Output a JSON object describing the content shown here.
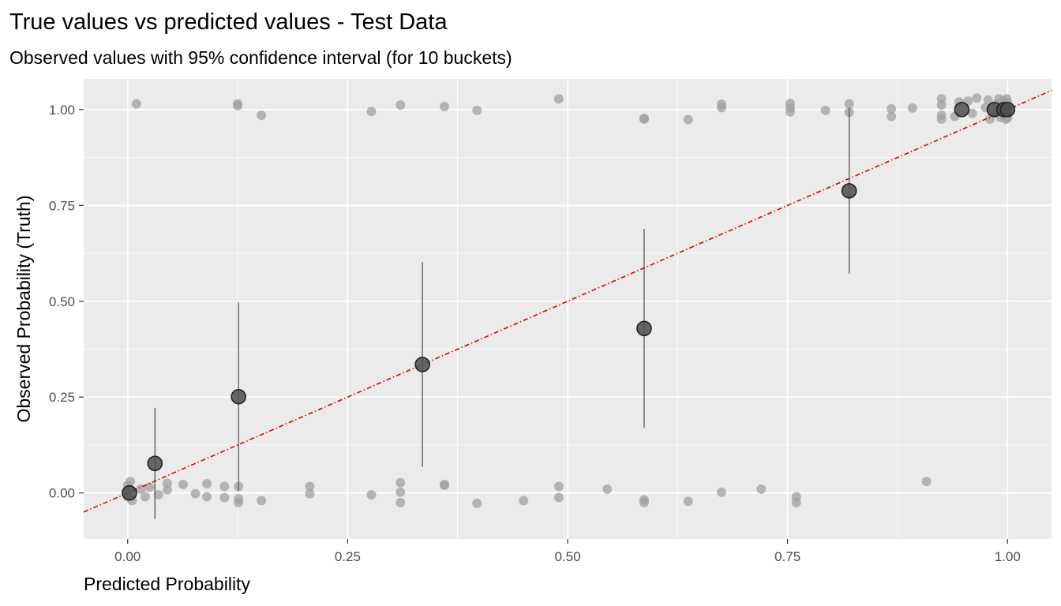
{
  "chart_data": {
    "type": "scatter",
    "title": "True values vs predicted values - Test Data",
    "subtitle": "Observed values with 95% confidence interval (for 10 buckets)",
    "xlabel": "Predicted Probability",
    "ylabel": "Observed Probability (Truth)",
    "xlim": [
      -0.05,
      1.05
    ],
    "ylim": [
      -0.12,
      1.08
    ],
    "x_ticks": [
      "0.00",
      "0.25",
      "0.50",
      "0.75",
      "1.00"
    ],
    "y_ticks": [
      "0.00",
      "0.25",
      "0.50",
      "0.75",
      "1.00"
    ],
    "grid": true,
    "reference_line": {
      "slope": 1,
      "intercept": 0,
      "color": "#dd0000",
      "style": "dotdash"
    },
    "observations": [
      [
        0.0,
        0.02
      ],
      [
        0.0,
        -0.01
      ],
      [
        0.002,
        0.01
      ],
      [
        0.005,
        -0.02
      ],
      [
        0.0,
        0.0
      ],
      [
        0.003,
        0.03
      ],
      [
        0.01,
        1.015
      ],
      [
        0.015,
        0.01
      ],
      [
        0.02,
        -0.01
      ],
      [
        0.025,
        0.015
      ],
      [
        0.035,
        -0.005
      ],
      [
        0.045,
        0.025
      ],
      [
        0.045,
        0.008
      ],
      [
        0.063,
        0.022
      ],
      [
        0.077,
        -0.002
      ],
      [
        0.09,
        0.024
      ],
      [
        0.09,
        -0.01
      ],
      [
        0.11,
        0.017
      ],
      [
        0.11,
        -0.012
      ],
      [
        0.125,
        1.015
      ],
      [
        0.125,
        1.01
      ],
      [
        0.126,
        0.017
      ],
      [
        0.126,
        -0.025
      ],
      [
        0.126,
        -0.015
      ],
      [
        0.152,
        0.985
      ],
      [
        0.152,
        -0.02
      ],
      [
        0.207,
        0.017
      ],
      [
        0.207,
        -0.002
      ],
      [
        0.277,
        0.995
      ],
      [
        0.277,
        -0.005
      ],
      [
        0.31,
        1.012
      ],
      [
        0.31,
        0.027
      ],
      [
        0.31,
        0.002
      ],
      [
        0.31,
        -0.025
      ],
      [
        0.36,
        1.008
      ],
      [
        0.36,
        0.02
      ],
      [
        0.36,
        0.022
      ],
      [
        0.397,
        0.998
      ],
      [
        0.397,
        -0.027
      ],
      [
        0.45,
        -0.02
      ],
      [
        0.49,
        1.028
      ],
      [
        0.49,
        0.017
      ],
      [
        0.49,
        -0.012
      ],
      [
        0.545,
        0.01
      ],
      [
        0.587,
        0.977
      ],
      [
        0.587,
        0.975
      ],
      [
        0.587,
        -0.018
      ],
      [
        0.587,
        -0.025
      ],
      [
        0.637,
        0.974
      ],
      [
        0.637,
        -0.022
      ],
      [
        0.675,
        1.014
      ],
      [
        0.675,
        1.005
      ],
      [
        0.675,
        0.002
      ],
      [
        0.72,
        0.01
      ],
      [
        0.753,
        1.016
      ],
      [
        0.753,
        1.005
      ],
      [
        0.753,
        0.994
      ],
      [
        0.76,
        -0.01
      ],
      [
        0.76,
        -0.025
      ],
      [
        0.793,
        0.998
      ],
      [
        0.82,
        1.015
      ],
      [
        0.82,
        0.993
      ],
      [
        0.868,
        1.002
      ],
      [
        0.868,
        0.982
      ],
      [
        0.892,
        1.004
      ],
      [
        0.908,
        0.03
      ],
      [
        0.925,
        1.028
      ],
      [
        0.925,
        1.012
      ],
      [
        0.925,
        0.985
      ],
      [
        0.925,
        0.975
      ],
      [
        0.94,
        0.982
      ],
      [
        0.945,
        1.02
      ],
      [
        0.955,
        1.022
      ],
      [
        0.96,
        0.99
      ],
      [
        0.965,
        1.03
      ],
      [
        0.975,
        1.005
      ],
      [
        0.978,
        1.025
      ],
      [
        0.98,
        0.975
      ],
      [
        0.985,
        0.992
      ],
      [
        0.988,
        1.015
      ],
      [
        0.99,
        1.028
      ],
      [
        0.992,
        0.98
      ],
      [
        0.995,
        1.022
      ],
      [
        0.996,
        0.985
      ],
      [
        0.997,
        1.01
      ],
      [
        0.998,
        0.975
      ],
      [
        0.999,
        1.028
      ],
      [
        1.0,
        1.0
      ],
      [
        1.0,
        0.99
      ],
      [
        1.0,
        1.018
      ],
      [
        1.0,
        0.978
      ]
    ],
    "bucket_means": [
      {
        "x": 0.002,
        "y": 0.0
      },
      {
        "x": 0.031,
        "y": 0.077,
        "lower": -0.068,
        "upper": 0.222
      },
      {
        "x": 0.126,
        "y": 0.251,
        "lower": 0.005,
        "upper": 0.497
      },
      {
        "x": 0.335,
        "y": 0.335,
        "lower": 0.068,
        "upper": 0.602
      },
      {
        "x": 0.587,
        "y": 0.429,
        "lower": 0.17,
        "upper": 0.689
      },
      {
        "x": 0.82,
        "y": 0.788,
        "lower": 0.572,
        "upper": 1.004
      },
      {
        "x": 0.948,
        "y": 1.0
      },
      {
        "x": 0.985,
        "y": 1.0
      },
      {
        "x": 0.996,
        "y": 1.0
      },
      {
        "x": 1.0,
        "y": 1.0
      }
    ],
    "colors": {
      "panel": "#ebebeb",
      "grid": "#ffffff",
      "observation": "#a0a0a0",
      "bucket": "#4d4d4d",
      "reference": "#dd0000"
    }
  }
}
